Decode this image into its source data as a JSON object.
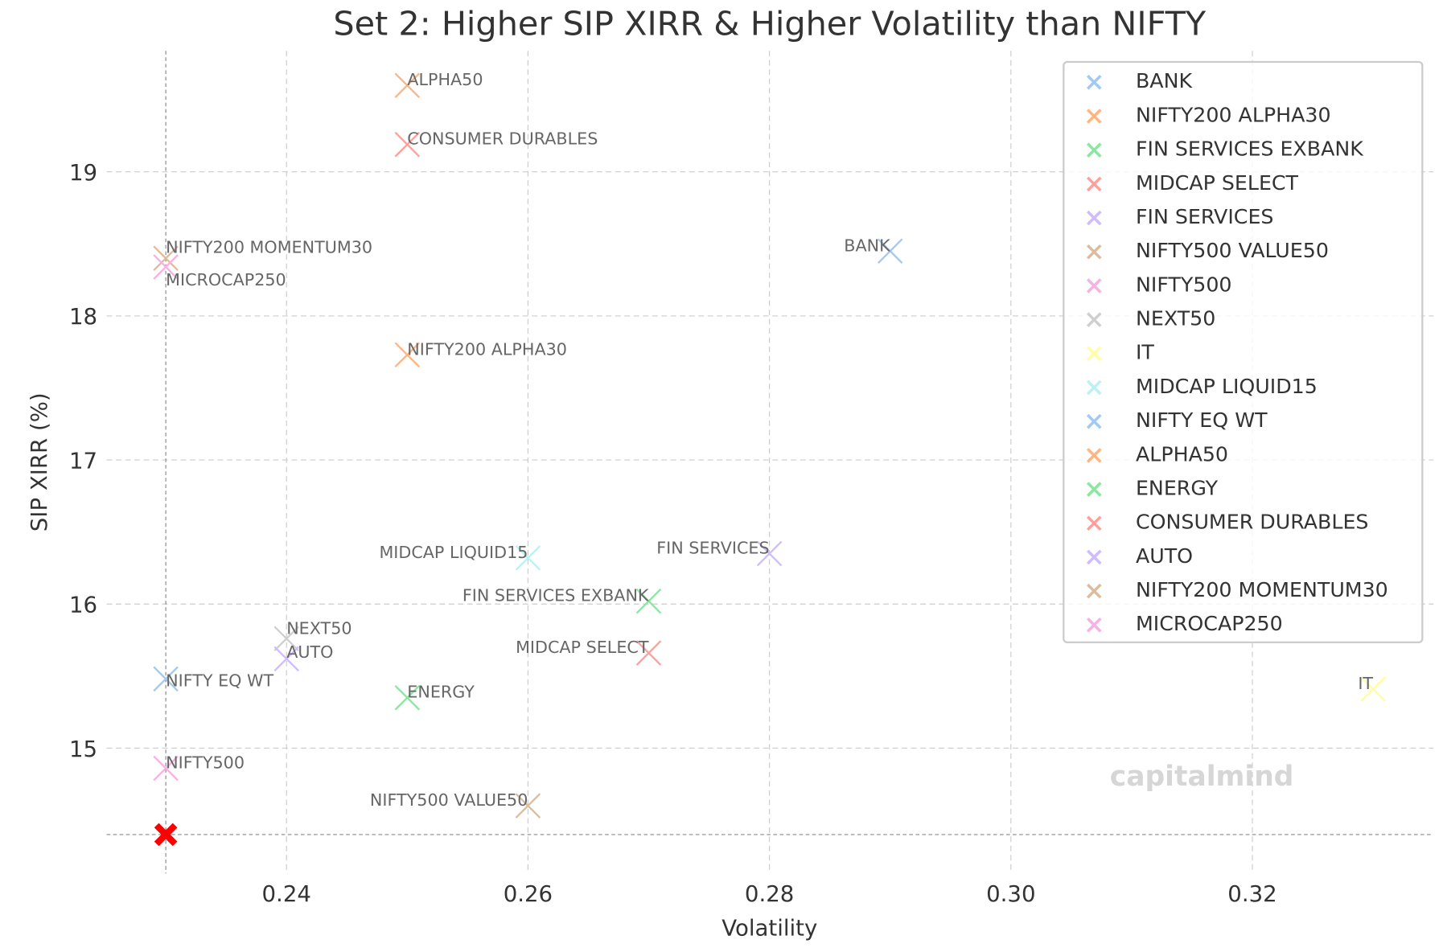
{
  "chart_data": {
    "type": "scatter",
    "title": "Set 2: Higher SIP XIRR & Higher Volatility than NIFTY",
    "xlabel": "Volatility",
    "ylabel": "SIP XIRR (%)",
    "xlim": [
      0.2251,
      0.335
    ],
    "ylim": [
      14.13,
      19.84
    ],
    "xticks": [
      "0.24",
      "0.26",
      "0.28",
      "0.30",
      "0.32"
    ],
    "yticks": [
      "15",
      "16",
      "17",
      "18",
      "19"
    ],
    "grid": true,
    "legend_position": "top-right",
    "marker": "x",
    "series": [
      {
        "name": "BANK",
        "x": 0.29,
        "y": 18.45,
        "color": "#a1c9f4",
        "label_align": "right"
      },
      {
        "name": "NIFTY200 ALPHA30",
        "x": 0.25,
        "y": 17.73,
        "color": "#ffb482",
        "label_align": "left"
      },
      {
        "name": "FIN SERVICES EXBANK",
        "x": 0.27,
        "y": 16.02,
        "color": "#8de5a1",
        "label_align": "right"
      },
      {
        "name": "MIDCAP SELECT",
        "x": 0.27,
        "y": 15.66,
        "color": "#ff9f9b",
        "label_align": "right"
      },
      {
        "name": "FIN SERVICES",
        "x": 0.28,
        "y": 16.35,
        "color": "#d0bbff",
        "label_align": "right"
      },
      {
        "name": "NIFTY500 VALUE50",
        "x": 0.26,
        "y": 14.6,
        "color": "#debb9b",
        "label_align": "right"
      },
      {
        "name": "NIFTY500",
        "x": 0.23,
        "y": 14.86,
        "color": "#fab0e4",
        "label_align": "left"
      },
      {
        "name": "NEXT50",
        "x": 0.24,
        "y": 15.76,
        "color": "#cfcfcf",
        "label_align": "left"
      },
      {
        "name": "IT",
        "x": 0.33,
        "y": 15.41,
        "color": "#fffea3",
        "label_align": "right"
      },
      {
        "name": "MIDCAP LIQUID15",
        "x": 0.26,
        "y": 16.32,
        "color": "#b9f2f0",
        "label_align": "right"
      },
      {
        "name": "NIFTY EQ WT",
        "x": 0.23,
        "y": 15.48,
        "color": "#a1c9f4",
        "label_align": "left"
      },
      {
        "name": "ALPHA50",
        "x": 0.25,
        "y": 19.6,
        "color": "#ffb482",
        "label_align": "left"
      },
      {
        "name": "ENERGY",
        "x": 0.25,
        "y": 15.35,
        "color": "#8de5a1",
        "label_align": "left"
      },
      {
        "name": "CONSUMER DURABLES",
        "x": 0.25,
        "y": 19.19,
        "color": "#ff9f9b",
        "label_align": "left"
      },
      {
        "name": "AUTO",
        "x": 0.24,
        "y": 15.62,
        "color": "#d0bbff",
        "label_align": "left"
      },
      {
        "name": "NIFTY200 MOMENTUM30",
        "x": 0.23,
        "y": 18.4,
        "color": "#debb9b",
        "label_align": "left"
      },
      {
        "name": "MICROCAP250",
        "x": 0.23,
        "y": 18.34,
        "color": "#fab0e4",
        "label_align": "left"
      }
    ],
    "reference_point": {
      "x": 0.23,
      "y": 14.4,
      "color": "#ff0000",
      "marker": "X"
    }
  },
  "watermark": "capitalmind"
}
